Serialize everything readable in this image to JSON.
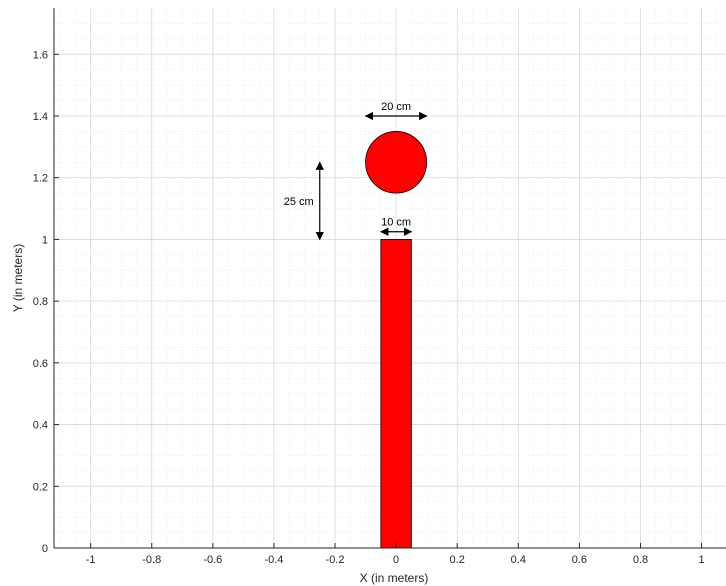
{
  "chart_data": {
    "type": "scatter",
    "title": "",
    "xlabel": "X (in meters)",
    "ylabel": "Y (in meters)",
    "xlim": [
      -1.12,
      1.08
    ],
    "ylim": [
      0,
      1.75
    ],
    "xticks": [
      -1,
      -0.8,
      -0.6,
      -0.4,
      -0.2,
      0,
      0.2,
      0.4,
      0.6,
      0.8,
      1
    ],
    "xtick_labels": [
      "-1",
      "-0.8",
      "-0.6",
      "-0.4",
      "-0.2",
      "0",
      "0.2",
      "0.4",
      "0.6",
      "0.8",
      "1"
    ],
    "yticks": [
      0,
      0.2,
      0.4,
      0.6,
      0.8,
      1,
      1.2,
      1.4,
      1.6
    ],
    "ytick_labels": [
      "0",
      "0.2",
      "0.4",
      "0.6",
      "0.8",
      "1",
      "1.2",
      "1.4",
      "1.6"
    ],
    "grid": true,
    "minor_grid": true,
    "colors": {
      "fill": "#ff0000",
      "grid": "#d9d9d9",
      "minor_grid": "#e6e6e6",
      "axis": "#262626"
    },
    "shapes": [
      {
        "kind": "rectangle",
        "x_min": -0.05,
        "x_max": 0.05,
        "y_min": 0,
        "y_max": 1.0
      },
      {
        "kind": "circle",
        "center": [
          0,
          1.25
        ],
        "radius": 0.1
      }
    ],
    "annotations": [
      {
        "text": "20 cm",
        "arrow": "horizontal",
        "from": [
          -0.1,
          1.4
        ],
        "to": [
          0.1,
          1.4
        ]
      },
      {
        "text": "25 cm",
        "arrow": "vertical",
        "from": [
          -0.25,
          1.0
        ],
        "to": [
          -0.25,
          1.25
        ]
      },
      {
        "text": "10 cm",
        "arrow": "horizontal",
        "from": [
          -0.05,
          1.025
        ],
        "to": [
          0.05,
          1.025
        ]
      }
    ]
  }
}
